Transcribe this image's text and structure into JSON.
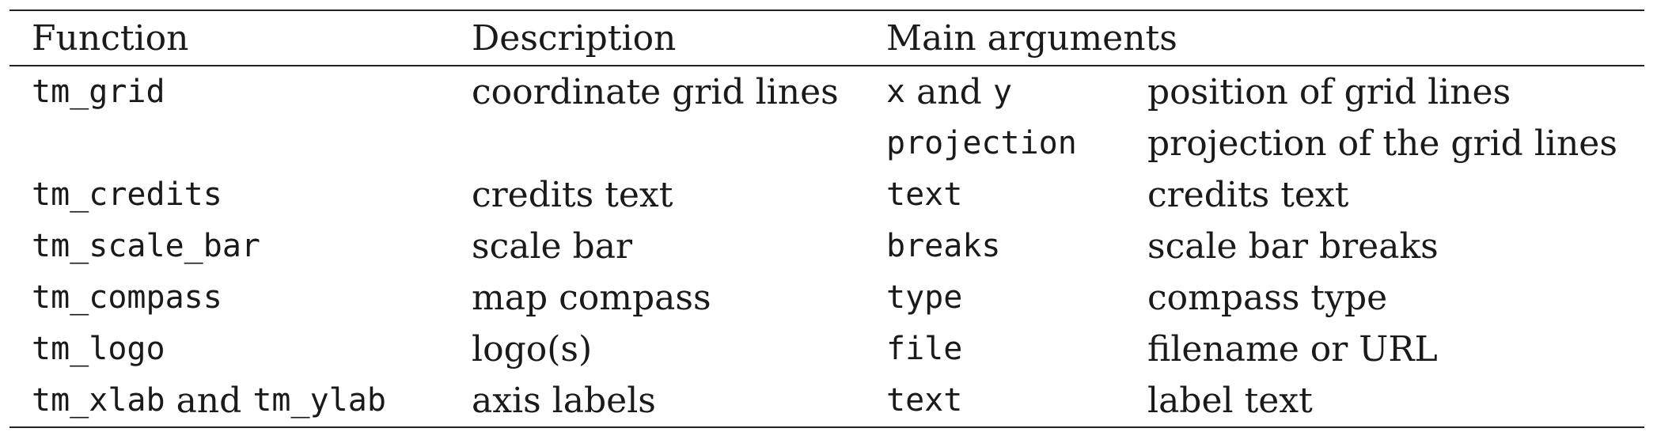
{
  "header": {
    "function": "Function",
    "description": "Description",
    "main_arguments": "Main arguments"
  },
  "rows": [
    {
      "function": "tm_grid",
      "description": "coordinate grid lines",
      "argument": "x",
      "argument_joiner": "and",
      "argument_2": "y",
      "argument_description": "position of grid lines"
    },
    {
      "function": "",
      "description": "",
      "argument": "projection",
      "argument_description": "projection of the grid lines"
    },
    {
      "function": "tm_credits",
      "description": "credits text",
      "argument": "text",
      "argument_description": "credits text"
    },
    {
      "function": "tm_scale_bar",
      "description": "scale bar",
      "argument": "breaks",
      "argument_description": "scale bar breaks"
    },
    {
      "function": "tm_compass",
      "description": "map compass",
      "argument": "type",
      "argument_description": "compass type"
    },
    {
      "function": "tm_logo",
      "description": "logo(s)",
      "argument": "file",
      "argument_description": "filename or URL"
    },
    {
      "function": "tm_xlab",
      "function_joiner": "and",
      "function_2": "tm_ylab",
      "description": "axis labels",
      "argument": "text",
      "argument_description": "label text"
    }
  ]
}
